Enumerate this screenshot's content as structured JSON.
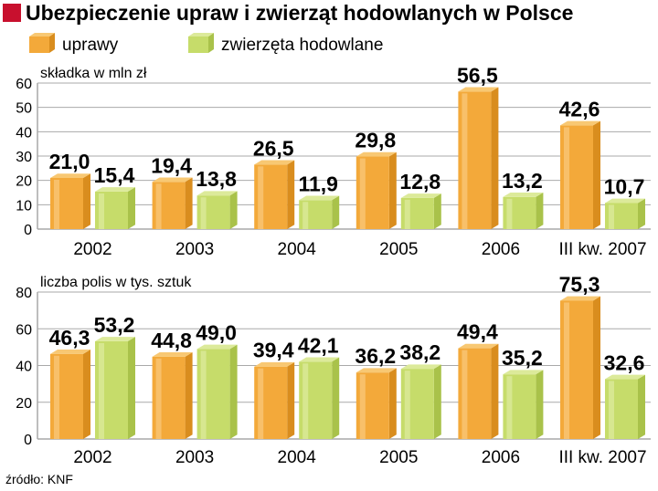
{
  "title": "Ubezpieczenie upraw i zwierząt hodowlanych w Polsce",
  "source": "źródło: KNF",
  "colors": {
    "title_square": "#c8102e",
    "crops": "#f3a93a",
    "livestock": "#c6dc6a",
    "grid": "#a9a9a9"
  },
  "legend": [
    {
      "label": "uprawy",
      "color": "#f3a93a"
    },
    {
      "label": "zwierzęta hodowlane",
      "color": "#c6dc6a"
    }
  ],
  "chart_data": [
    {
      "type": "bar",
      "ylabel": "składka w mln zł",
      "ylim": [
        0,
        60
      ],
      "yticks": [
        0,
        10,
        20,
        30,
        40,
        50,
        60
      ],
      "categories": [
        "2002",
        "2003",
        "2004",
        "2005",
        "2006",
        "III kw. 2007"
      ],
      "series": [
        {
          "name": "uprawy",
          "values": [
            21.0,
            19.4,
            26.5,
            29.8,
            56.5,
            42.6
          ],
          "labels": [
            "21,0",
            "19,4",
            "26,5",
            "29,8",
            "56,5",
            "42,6"
          ]
        },
        {
          "name": "zwierzęta hodowlane",
          "values": [
            15.4,
            13.8,
            11.9,
            12.8,
            13.2,
            10.7
          ],
          "labels": [
            "15,4",
            "13,8",
            "11,9",
            "12,8",
            "13,2",
            "10,7"
          ]
        }
      ],
      "grid": true,
      "legend": "top-left"
    },
    {
      "type": "bar",
      "ylabel": "liczba polis w tys. sztuk",
      "ylim": [
        0,
        80
      ],
      "yticks": [
        0,
        20,
        40,
        60,
        80
      ],
      "categories": [
        "2002",
        "2003",
        "2004",
        "2005",
        "2006",
        "III kw. 2007"
      ],
      "series": [
        {
          "name": "uprawy",
          "values": [
            46.3,
            44.8,
            39.4,
            36.2,
            49.4,
            75.3
          ],
          "labels": [
            "46,3",
            "44,8",
            "39,4",
            "36,2",
            "49,4",
            "75,3"
          ]
        },
        {
          "name": "zwierzęta hodowlane",
          "values": [
            53.2,
            49.0,
            42.1,
            38.2,
            35.2,
            32.6
          ],
          "labels": [
            "53,2",
            "49,0",
            "42,1",
            "38,2",
            "35,2",
            "32,6"
          ]
        }
      ],
      "grid": true
    }
  ]
}
